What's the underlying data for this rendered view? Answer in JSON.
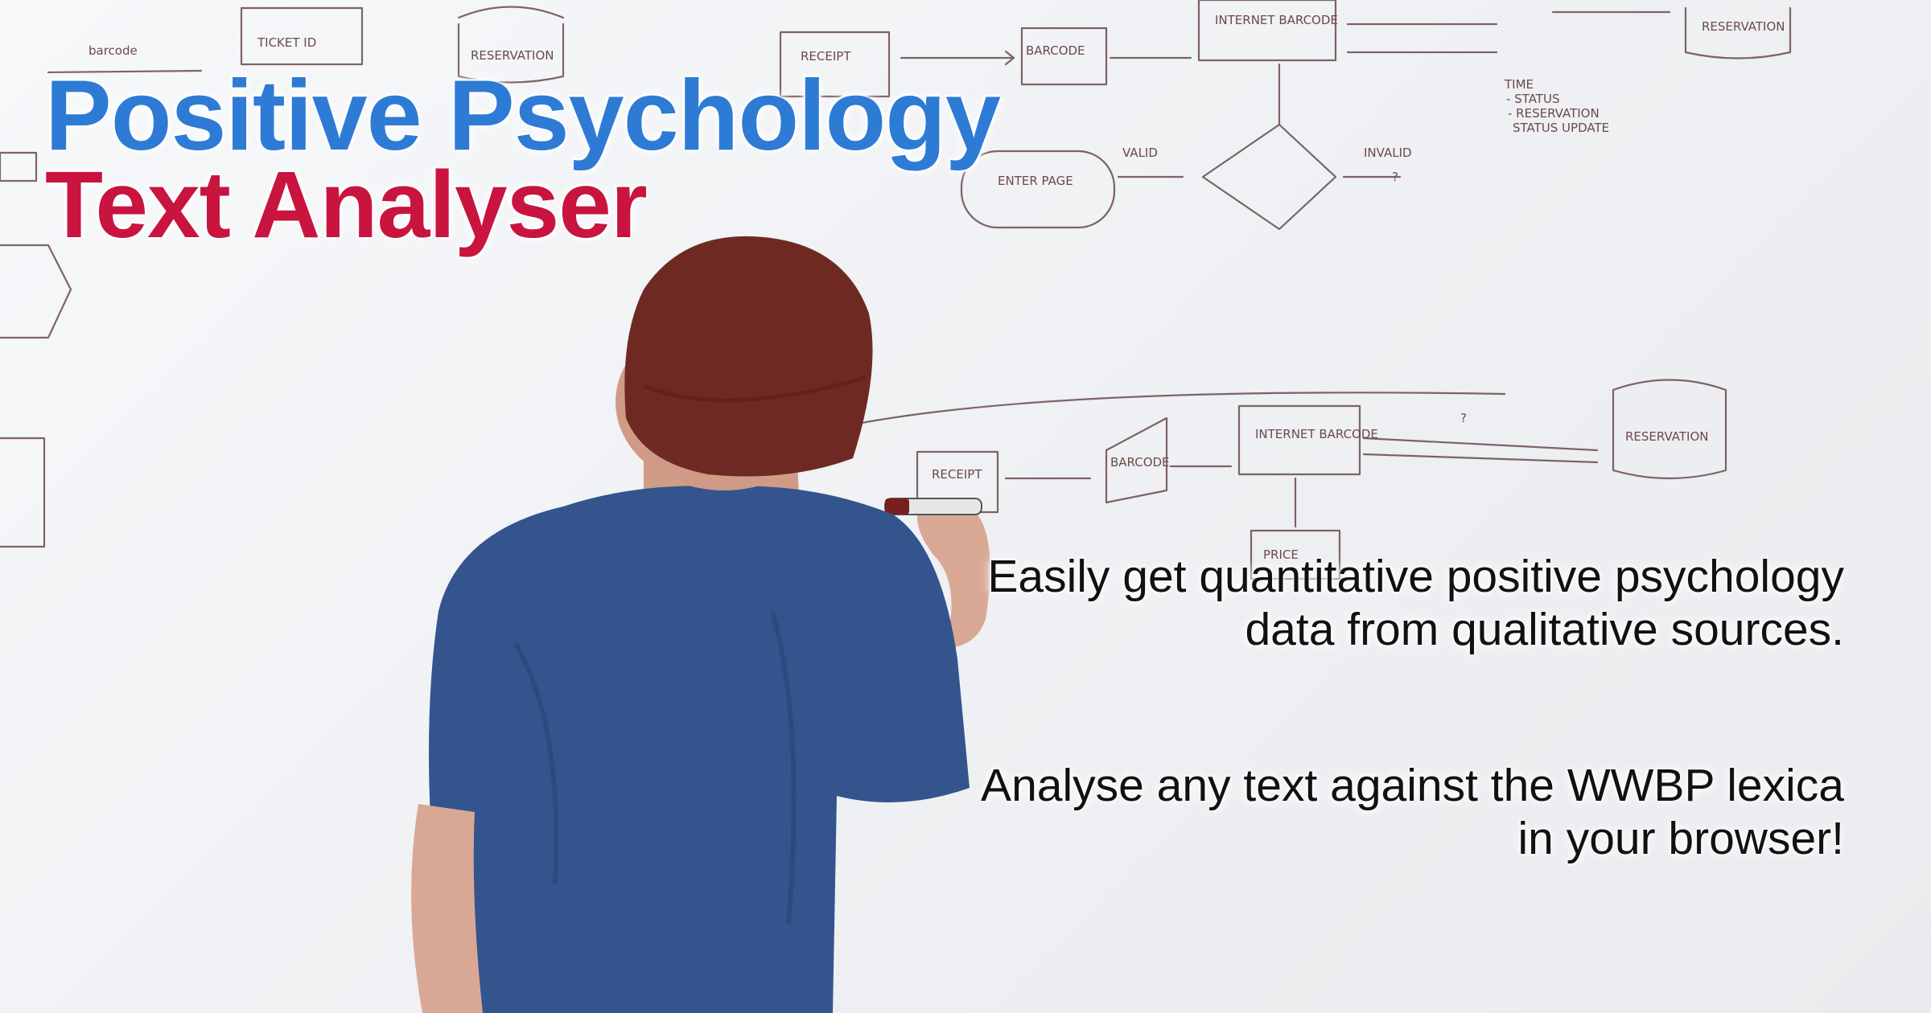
{
  "title": {
    "line1": "Positive Psychology",
    "line2": "Text Analyser",
    "line1_color": "#2e7bd6",
    "line2_color": "#c8143f"
  },
  "tagline": {
    "paragraph1": "Easily get quantitative positive psychology data from qualitative sources.",
    "paragraph2": "Analyse any text against the WWBP lexica in your browser!"
  },
  "photo": {
    "subject": "person-writing-on-whiteboard",
    "whiteboard_labels": [
      "barcode",
      "TICKET ID",
      "RESERVATION",
      "RECEIPT",
      "BARCODE",
      "INTERNET BARCODE",
      "RESERVATION",
      "TIME",
      "- STATUS",
      "- RESERVATION",
      "STATUS UPDATE",
      "VALID",
      "INVALID",
      "?",
      "ENTER PAGE",
      "RECEIPT",
      "BARCODE",
      "INTERNET BARCODE",
      "?",
      "RESERVATION",
      "PRICE"
    ],
    "colors": {
      "whiteboard": "#f3f4f6",
      "marker": "#6b4a4a",
      "beanie": "#6e2a22",
      "shirt": "#34548e",
      "skin": "#d9a894"
    }
  }
}
